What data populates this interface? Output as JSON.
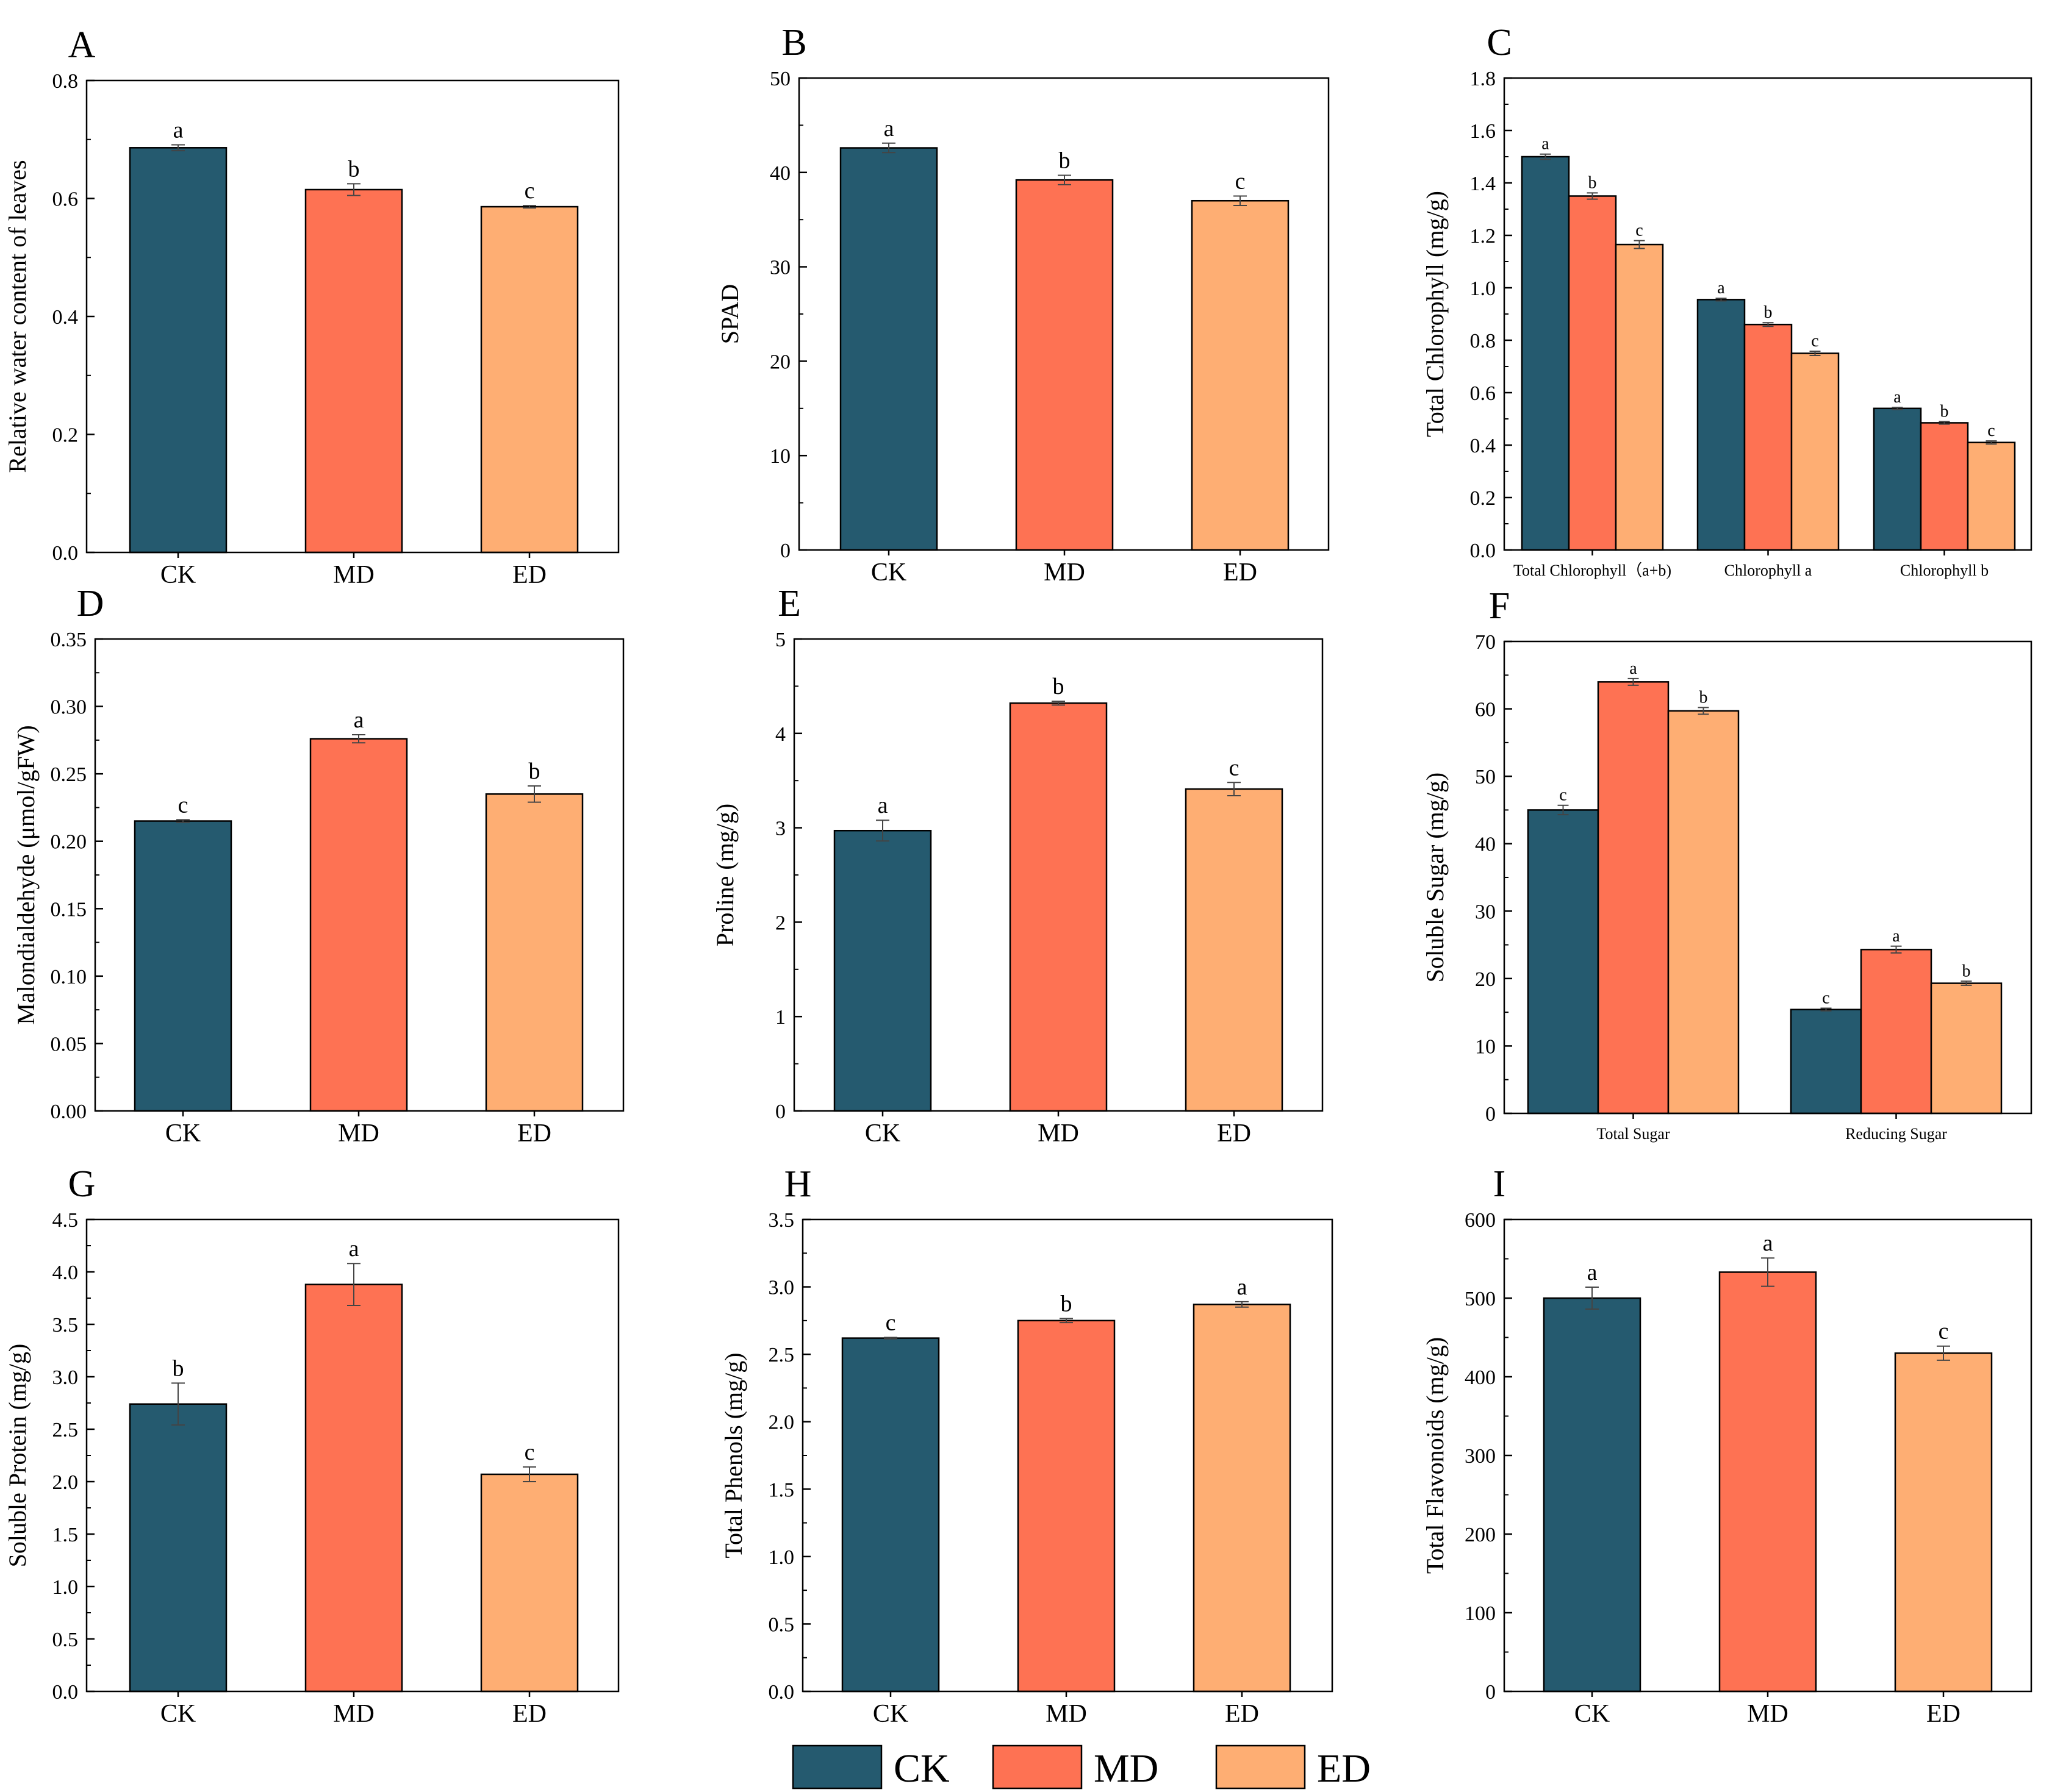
{
  "colors": {
    "CK": "#255a6f",
    "MD": "#fe7253",
    "ED": "#feae73",
    "axis": "#000000"
  },
  "legend": [
    {
      "key": "CK",
      "label": "CK"
    },
    {
      "key": "MD",
      "label": "MD"
    },
    {
      "key": "ED",
      "label": "ED"
    }
  ],
  "chart_data": [
    {
      "id": "A",
      "letter": "A",
      "type": "bar",
      "ylabel": "Relative water content of leaves",
      "ylim": [
        0,
        0.8
      ],
      "yticks": [
        0.0,
        0.2,
        0.4,
        0.6,
        0.8
      ],
      "ytick_labels": [
        "0.0",
        "0.2",
        "0.4",
        "0.6",
        "0.8"
      ],
      "categories": [
        "CK",
        "MD",
        "ED"
      ],
      "series": [
        {
          "name": "value",
          "values": [
            0.686,
            0.615,
            0.586
          ],
          "errors": [
            0.005,
            0.01,
            0.002
          ],
          "letters": [
            "a",
            "b",
            "c"
          ]
        }
      ]
    },
    {
      "id": "B",
      "letter": "B",
      "type": "bar",
      "ylabel": "SPAD",
      "ylim": [
        0,
        50
      ],
      "yticks": [
        0,
        10,
        20,
        30,
        40,
        50
      ],
      "ytick_labels": [
        "0",
        "10",
        "20",
        "30",
        "40",
        "50"
      ],
      "categories": [
        "CK",
        "MD",
        "ED"
      ],
      "series": [
        {
          "name": "value",
          "values": [
            42.6,
            39.2,
            37.0
          ],
          "errors": [
            0.5,
            0.5,
            0.5
          ],
          "letters": [
            "a",
            "b",
            "c"
          ]
        }
      ]
    },
    {
      "id": "C",
      "letter": "C",
      "type": "bar",
      "grouped": true,
      "ylabel": "Total Chlorophyll (mg/g)",
      "ylim": [
        0,
        1.8
      ],
      "yticks": [
        0.0,
        0.2,
        0.4,
        0.6,
        0.8,
        1.0,
        1.2,
        1.4,
        1.6,
        1.8
      ],
      "ytick_labels": [
        "0.0",
        "0.2",
        "0.4",
        "0.6",
        "0.8",
        "1.0",
        "1.2",
        "1.4",
        "1.6",
        "1.8"
      ],
      "categories": [
        "Total Chlorophyll（a+b)",
        "Chlorophyll a",
        "Chlorophyll b"
      ],
      "series": [
        {
          "name": "CK",
          "values": [
            1.5,
            0.955,
            0.54
          ],
          "errors": [
            0.01,
            0.005,
            0.004
          ],
          "letters": [
            "a",
            "a",
            "a"
          ]
        },
        {
          "name": "MD",
          "values": [
            1.35,
            0.86,
            0.485
          ],
          "errors": [
            0.012,
            0.007,
            0.005
          ],
          "letters": [
            "b",
            "b",
            "b"
          ]
        },
        {
          "name": "ED",
          "values": [
            1.165,
            0.75,
            0.41
          ],
          "errors": [
            0.015,
            0.008,
            0.006
          ],
          "letters": [
            "c",
            "c",
            "c"
          ]
        }
      ]
    },
    {
      "id": "D",
      "letter": "D",
      "type": "bar",
      "ylabel": "Malondialdehyde (μmol/gFW)",
      "ylim": [
        0,
        0.35
      ],
      "yticks": [
        0.0,
        0.05,
        0.1,
        0.15,
        0.2,
        0.25,
        0.3,
        0.35
      ],
      "ytick_labels": [
        "0.00",
        "0.05",
        "0.10",
        "0.15",
        "0.20",
        "0.25",
        "0.30",
        "0.35"
      ],
      "categories": [
        "CK",
        "MD",
        "ED"
      ],
      "series": [
        {
          "name": "value",
          "values": [
            0.215,
            0.276,
            0.235
          ],
          "errors": [
            0.001,
            0.003,
            0.006
          ],
          "letters": [
            "c",
            "a",
            "b"
          ]
        }
      ]
    },
    {
      "id": "E",
      "letter": "E",
      "type": "bar",
      "ylabel": "Proline (mg/g)",
      "ylim": [
        0,
        5
      ],
      "yticks": [
        0,
        1,
        2,
        3,
        4,
        5
      ],
      "ytick_labels": [
        "0",
        "1",
        "2",
        "3",
        "4",
        "5"
      ],
      "categories": [
        "CK",
        "MD",
        "ED"
      ],
      "series": [
        {
          "name": "value",
          "values": [
            2.97,
            4.32,
            3.41
          ],
          "errors": [
            0.11,
            0.02,
            0.07
          ],
          "letters": [
            "a",
            "b",
            "c"
          ]
        }
      ]
    },
    {
      "id": "F",
      "letter": "F",
      "type": "bar",
      "grouped": true,
      "ylabel": "Soluble Sugar (mg/g)",
      "ylim": [
        0,
        70
      ],
      "yticks": [
        0,
        10,
        20,
        30,
        40,
        50,
        60,
        70
      ],
      "ytick_labels": [
        "0",
        "10",
        "20",
        "30",
        "40",
        "50",
        "60",
        "70"
      ],
      "categories": [
        "Total Sugar",
        "Reducing Sugar"
      ],
      "series": [
        {
          "name": "CK",
          "values": [
            45.0,
            15.4
          ],
          "errors": [
            0.7,
            0.2
          ],
          "letters": [
            "c",
            "c"
          ]
        },
        {
          "name": "MD",
          "values": [
            64.0,
            24.3
          ],
          "errors": [
            0.5,
            0.5
          ],
          "letters": [
            "a",
            "a"
          ]
        },
        {
          "name": "ED",
          "values": [
            59.7,
            19.3
          ],
          "errors": [
            0.5,
            0.3
          ],
          "letters": [
            "b",
            "b"
          ]
        }
      ]
    },
    {
      "id": "G",
      "letter": "G",
      "type": "bar",
      "ylabel": "Soluble Protein (mg/g)",
      "ylim": [
        0,
        4.5
      ],
      "yticks": [
        0.0,
        0.5,
        1.0,
        1.5,
        2.0,
        2.5,
        3.0,
        3.5,
        4.0,
        4.5
      ],
      "ytick_labels": [
        "0.0",
        "0.5",
        "1.0",
        "1.5",
        "2.0",
        "2.5",
        "3.0",
        "3.5",
        "4.0",
        "4.5"
      ],
      "categories": [
        "CK",
        "MD",
        "ED"
      ],
      "series": [
        {
          "name": "value",
          "values": [
            2.74,
            3.88,
            2.07
          ],
          "errors": [
            0.2,
            0.2,
            0.07
          ],
          "letters": [
            "b",
            "a",
            "c"
          ]
        }
      ]
    },
    {
      "id": "H",
      "letter": "H",
      "type": "bar",
      "ylabel": "Total Phenols (mg/g)",
      "ylim": [
        0,
        3.5
      ],
      "yticks": [
        0.0,
        0.5,
        1.0,
        1.5,
        2.0,
        2.5,
        3.0,
        3.5
      ],
      "ytick_labels": [
        "0.0",
        "0.5",
        "1.0",
        "1.5",
        "2.0",
        "2.5",
        "3.0",
        "3.5"
      ],
      "categories": [
        "CK",
        "MD",
        "ED"
      ],
      "series": [
        {
          "name": "value",
          "values": [
            2.62,
            2.75,
            2.87
          ],
          "errors": [
            0.005,
            0.015,
            0.02
          ],
          "letters": [
            "c",
            "b",
            "a"
          ]
        }
      ]
    },
    {
      "id": "I",
      "letter": "I",
      "type": "bar",
      "ylabel": "Total Flavonoids (mg/g)",
      "ylim": [
        0,
        600
      ],
      "yticks": [
        0,
        100,
        200,
        300,
        400,
        500,
        600
      ],
      "ytick_labels": [
        "0",
        "100",
        "200",
        "300",
        "400",
        "500",
        "600"
      ],
      "categories": [
        "CK",
        "MD",
        "ED"
      ],
      "series": [
        {
          "name": "value",
          "values": [
            500,
            533,
            430
          ],
          "errors": [
            14,
            18,
            9
          ],
          "letters": [
            "a",
            "a",
            "c"
          ]
        }
      ]
    }
  ]
}
